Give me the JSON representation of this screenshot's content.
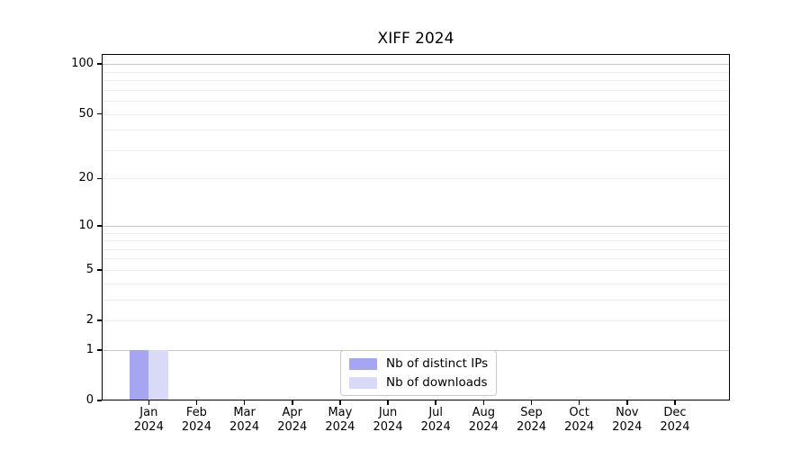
{
  "chart_data": {
    "type": "bar",
    "title": "XIFF 2024",
    "categories": [
      {
        "month": "Jan",
        "year": "2024"
      },
      {
        "month": "Feb",
        "year": "2024"
      },
      {
        "month": "Mar",
        "year": "2024"
      },
      {
        "month": "Apr",
        "year": "2024"
      },
      {
        "month": "May",
        "year": "2024"
      },
      {
        "month": "Jun",
        "year": "2024"
      },
      {
        "month": "Jul",
        "year": "2024"
      },
      {
        "month": "Aug",
        "year": "2024"
      },
      {
        "month": "Sep",
        "year": "2024"
      },
      {
        "month": "Oct",
        "year": "2024"
      },
      {
        "month": "Nov",
        "year": "2024"
      },
      {
        "month": "Dec",
        "year": "2024"
      }
    ],
    "series": [
      {
        "name": "Nb of distinct IPs",
        "color": "#a5a5f1",
        "values": [
          1,
          0,
          0,
          0,
          0,
          0,
          0,
          0,
          0,
          0,
          0,
          0
        ]
      },
      {
        "name": "Nb of downloads",
        "color": "#d9d9f8",
        "values": [
          1,
          0,
          0,
          0,
          0,
          0,
          0,
          0,
          0,
          0,
          0,
          0
        ]
      }
    ],
    "xlabel": "",
    "ylabel": "",
    "yscale": "log10(1+x)",
    "ylim": [
      0,
      114
    ],
    "ytick_values": [
      0,
      1,
      2,
      5,
      10,
      20,
      50,
      100
    ],
    "ytick_labels": [
      "0",
      "1",
      "2",
      "5",
      "10",
      "20",
      "50",
      "100"
    ],
    "grid": {
      "enabled": true,
      "major_values": [
        1,
        10,
        100
      ],
      "minor_values": [
        2,
        3,
        4,
        5,
        6,
        7,
        8,
        9,
        20,
        30,
        40,
        50,
        60,
        70,
        80,
        90
      ],
      "major_color": "#c6c6c6",
      "minor_color": "#ececec"
    },
    "legend": {
      "position": "lower center",
      "items": [
        "Nb of distinct IPs",
        "Nb of downloads"
      ]
    },
    "colors": {
      "background": "#ffffff",
      "spine": "#000000",
      "bar_distinct_ips": "#a5a5f1",
      "bar_downloads": "#d9d9f8"
    }
  }
}
